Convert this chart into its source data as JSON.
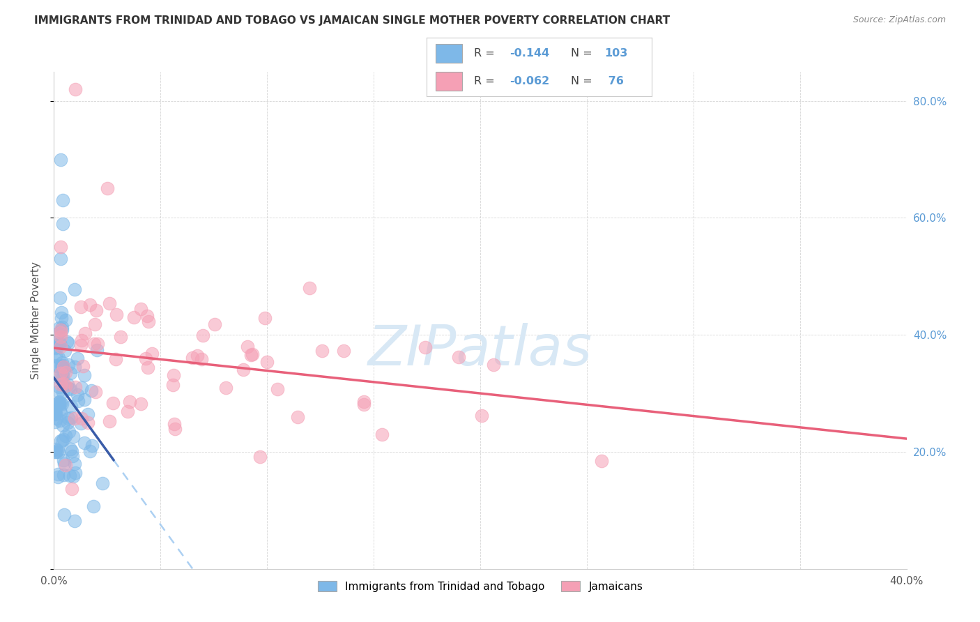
{
  "title": "IMMIGRANTS FROM TRINIDAD AND TOBAGO VS JAMAICAN SINGLE MOTHER POVERTY CORRELATION CHART",
  "source": "Source: ZipAtlas.com",
  "ylabel": "Single Mother Poverty",
  "xlim": [
    0.0,
    0.4
  ],
  "ylim": [
    0.0,
    0.85
  ],
  "color_blue": "#7EB8E8",
  "color_pink": "#F5A0B5",
  "color_blue_line": "#3A5CA8",
  "color_pink_line": "#E8607A",
  "color_blue_dashed": "#9EC8F0",
  "color_right_tick": "#5B9BD5",
  "watermark_color": "#D8E8F5",
  "legend_label_blue": "Immigrants from Trinidad and Tobago",
  "legend_label_pink": "Jamaicans",
  "title_fontsize": 11,
  "source_fontsize": 9,
  "tick_fontsize": 11,
  "ylabel_fontsize": 11,
  "legend_fontsize": 11,
  "blue_seed": 7,
  "pink_seed": 99
}
